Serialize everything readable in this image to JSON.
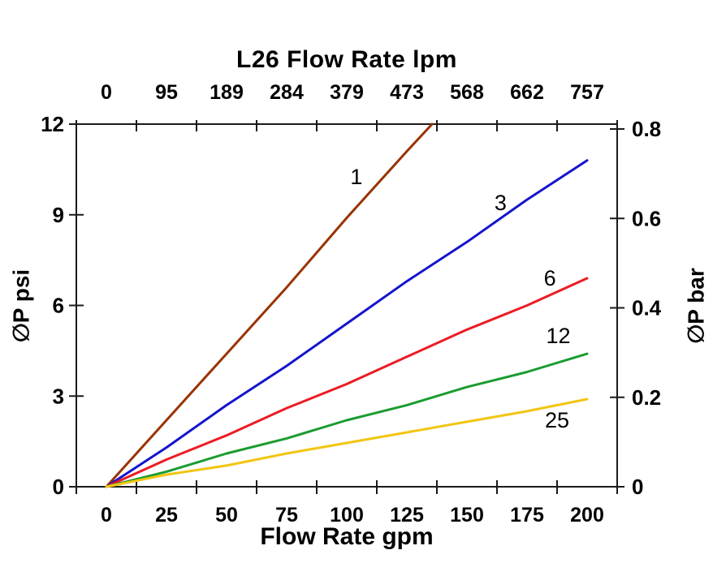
{
  "chart_data": {
    "type": "line",
    "title": "L26 Flow Rate lpm",
    "xlabel": "Flow Rate gpm",
    "ylabel_left": "∅P psi",
    "ylabel_right": "∅P bar",
    "xlim_gpm": [
      0,
      200
    ],
    "ylim_psi": [
      0,
      12
    ],
    "ylim_bar": [
      0,
      0.8
    ],
    "grid": false,
    "legend_position": "inline-curve-labels",
    "bottom_ticks": {
      "values": [
        0,
        25,
        50,
        75,
        100,
        125,
        150,
        175,
        200
      ],
      "labels": [
        "0",
        "25",
        "50",
        "75",
        "100",
        "125",
        "150",
        "175",
        "200"
      ]
    },
    "top_ticks": {
      "values": [
        0,
        25,
        50,
        75,
        100,
        125,
        150,
        175,
        200
      ],
      "labels": [
        "0",
        "95",
        "189",
        "284",
        "379",
        "473",
        "568",
        "662",
        "757"
      ]
    },
    "left_ticks": {
      "values": [
        0,
        3,
        6,
        9,
        12
      ],
      "labels": [
        "0",
        "3",
        "6",
        "9",
        "12"
      ]
    },
    "right_ticks": {
      "values": [
        0,
        0.2,
        0.4,
        0.6,
        0.8
      ],
      "labels": [
        "0",
        "0.2",
        "0.4",
        "0.6",
        "0.8"
      ]
    },
    "series": [
      {
        "name": "1",
        "color": "#993300",
        "x_gpm": [
          0,
          25,
          50,
          75,
          100,
          125,
          135.5
        ],
        "psi": [
          0,
          2.2,
          4.4,
          6.6,
          8.9,
          11.1,
          12.0
        ],
        "label_pos": {
          "gpm": 104,
          "psi": 10.25
        }
      },
      {
        "name": "3",
        "color": "#1414CC",
        "x_gpm": [
          0,
          25,
          50,
          75,
          100,
          125,
          150,
          175,
          200
        ],
        "psi": [
          0,
          1.3,
          2.7,
          4.0,
          5.4,
          6.8,
          8.1,
          9.5,
          10.8
        ],
        "label_pos": {
          "gpm": 164,
          "psi": 9.4
        }
      },
      {
        "name": "6",
        "color": "#EC1C24",
        "x_gpm": [
          0,
          25,
          50,
          75,
          100,
          125,
          150,
          175,
          200
        ],
        "psi": [
          0,
          0.9,
          1.7,
          2.6,
          3.4,
          4.3,
          5.2,
          6.0,
          6.9
        ],
        "label_pos": {
          "gpm": 184.5,
          "psi": 6.9
        }
      },
      {
        "name": "12",
        "color": "#1A9C30",
        "x_gpm": [
          0,
          25,
          50,
          75,
          100,
          125,
          150,
          175,
          200
        ],
        "psi": [
          0,
          0.5,
          1.1,
          1.6,
          2.2,
          2.7,
          3.3,
          3.8,
          4.4
        ],
        "label_pos": {
          "gpm": 188,
          "psi": 5.0
        }
      },
      {
        "name": "25",
        "color": "#F2C512",
        "x_gpm": [
          0,
          25,
          50,
          75,
          100,
          125,
          150,
          175,
          200
        ],
        "psi": [
          0,
          0.4,
          0.7,
          1.1,
          1.45,
          1.8,
          2.15,
          2.5,
          2.9
        ],
        "label_pos": {
          "gpm": 187.5,
          "psi": 2.2
        }
      }
    ]
  }
}
